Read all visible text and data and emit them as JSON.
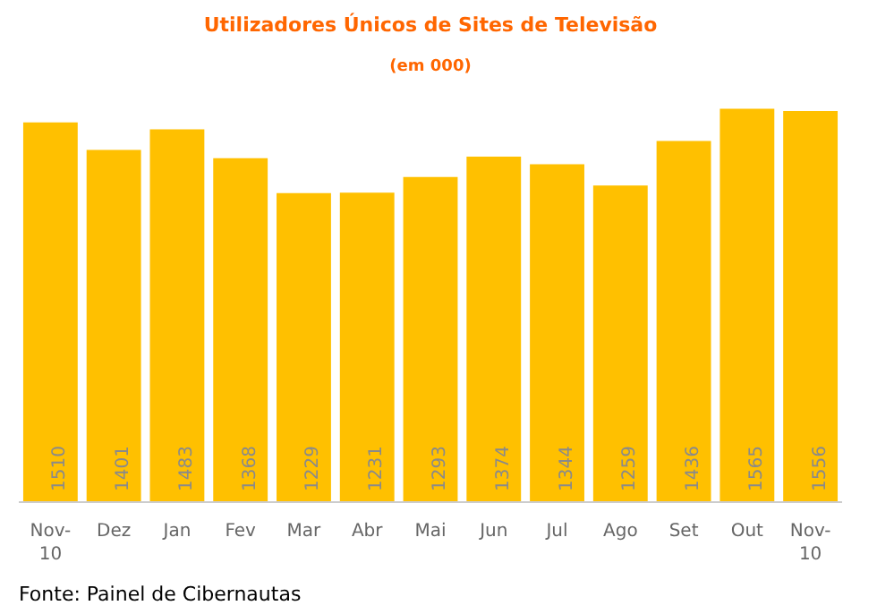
{
  "chart_data": {
    "type": "bar",
    "title": "Utilizadores Únicos de Sites de Televisão",
    "subtitle": "(em 000)",
    "categories": [
      "Nov-10",
      "Dez",
      "Jan",
      "Fev",
      "Mar",
      "Abr",
      "Mai",
      "Jun",
      "Jul",
      "Ago",
      "Set",
      "Out",
      "Nov-10"
    ],
    "values": [
      1510,
      1401,
      1483,
      1368,
      1229,
      1231,
      1293,
      1374,
      1344,
      1259,
      1436,
      1565,
      1556
    ],
    "color": "#ffc000",
    "data_labels": true,
    "grid": false,
    "annotations": [
      "Fonte: Painel de Cibernautas"
    ]
  }
}
